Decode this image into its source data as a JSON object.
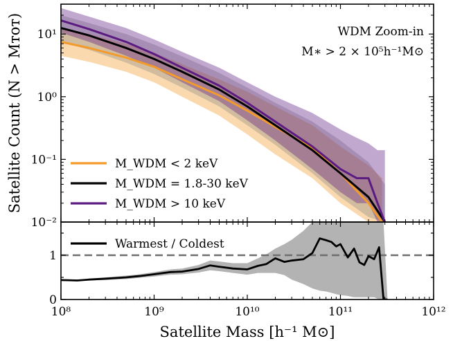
{
  "chart_data": [
    {
      "type": "line",
      "panel": "top",
      "annotation": [
        "WDM Zoom-in",
        "M∗ > 2 × 10⁵h⁻¹M⊙"
      ],
      "xlabel": "Satellite Mass [h⁻¹ M⊙]",
      "ylabel": "Satellite Count (N > Mᴛᴏᴛ)",
      "xscale": "log",
      "yscale": "log",
      "xlim": [
        100000000.0,
        1000000000000.0
      ],
      "ylim": [
        0.01,
        30
      ],
      "xticks": [
        {
          "v": 100000000.0,
          "label": "10⁸"
        },
        {
          "v": 1000000000.0,
          "label": "10⁹"
        },
        {
          "v": 10000000000.0,
          "label": "10¹⁰"
        },
        {
          "v": 100000000000.0,
          "label": "10¹¹"
        },
        {
          "v": 1000000000000.0,
          "label": "10¹²"
        }
      ],
      "yticks": [
        {
          "v": 0.01,
          "label": "10⁻²"
        },
        {
          "v": 0.1,
          "label": "10⁻¹"
        },
        {
          "v": 1,
          "label": "10⁰"
        },
        {
          "v": 10,
          "label": "10¹"
        }
      ],
      "legend_position": "lower-left",
      "series": [
        {
          "name": "M_WDM < 2 keV",
          "color": "#f39b2a",
          "x": [
            100000000.0,
            200000000.0,
            500000000.0,
            1000000000.0,
            2000000000.0,
            5000000000.0,
            10000000000.0,
            20000000000.0,
            50000000000.0,
            100000000000.0,
            200000000000.0,
            280000000000.0
          ],
          "y": [
            7.5,
            6.0,
            4.2,
            3.0,
            1.9,
            1.05,
            0.6,
            0.33,
            0.15,
            0.06,
            0.02,
            0.01
          ],
          "band_low": [
            4.5,
            3.6,
            2.5,
            1.7,
            1.0,
            0.5,
            0.25,
            0.12,
            0.05,
            0.02,
            0.01,
            0.01
          ],
          "band_high": [
            12.5,
            10.0,
            7.0,
            5.0,
            3.3,
            1.9,
            1.2,
            0.7,
            0.35,
            0.16,
            0.08,
            0.05
          ]
        },
        {
          "name": "M_WDM = 1.8-30 keV",
          "color": "#000000",
          "x": [
            100000000.0,
            200000000.0,
            500000000.0,
            1000000000.0,
            2000000000.0,
            5000000000.0,
            10000000000.0,
            20000000000.0,
            50000000000.0,
            100000000000.0,
            200000000000.0,
            300000000000.0
          ],
          "y": [
            12.5,
            9.5,
            6.0,
            4.0,
            2.5,
            1.3,
            0.7,
            0.35,
            0.14,
            0.06,
            0.025,
            0.01
          ],
          "band_low": [
            7.5,
            5.6,
            3.5,
            2.3,
            1.4,
            0.7,
            0.35,
            0.17,
            0.06,
            0.025,
            0.012,
            0.01
          ],
          "band_high": [
            20,
            15,
            10,
            6.8,
            4.4,
            2.4,
            1.4,
            0.8,
            0.4,
            0.2,
            0.09,
            0.04
          ]
        },
        {
          "name": "M_WDM > 10 keV",
          "color": "#5b1a80",
          "x": [
            100000000.0,
            200000000.0,
            500000000.0,
            1000000000.0,
            2000000000.0,
            5000000000.0,
            10000000000.0,
            20000000000.0,
            50000000000.0,
            100000000000.0,
            150000000000.0,
            200000000000.0,
            250000000000.0,
            300000000000.0
          ],
          "y": [
            16.5,
            12.0,
            7.5,
            4.8,
            2.9,
            1.5,
            0.8,
            0.4,
            0.16,
            0.07,
            0.05,
            0.05,
            0.02,
            0.01
          ],
          "band_low": [
            10.5,
            7.5,
            4.5,
            2.9,
            1.7,
            0.85,
            0.42,
            0.2,
            0.07,
            0.03,
            0.02,
            0.02,
            0.01,
            0.01
          ],
          "band_high": [
            26,
            19,
            12.5,
            8.2,
            5.2,
            2.9,
            1.7,
            1.0,
            0.55,
            0.3,
            0.22,
            0.18,
            0.14,
            0.14
          ]
        }
      ]
    },
    {
      "type": "line",
      "panel": "bottom",
      "xscale": "log",
      "xlim": [
        100000000.0,
        1000000000000.0
      ],
      "ylim": [
        0,
        1.75
      ],
      "yticks": [
        {
          "v": 0,
          "label": "0"
        },
        {
          "v": 1,
          "label": "1"
        }
      ],
      "reference_line": 1,
      "legend_position": "top-left",
      "series": [
        {
          "name": "Warmest / Coldest",
          "color": "#000000",
          "band_color": "#b3b3b3",
          "x": [
            100000000.0,
            150000000.0,
            200000000.0,
            300000000.0,
            500000000.0,
            700000000.0,
            1000000000.0,
            1500000000.0,
            2000000000.0,
            3000000000.0,
            4000000000.0,
            5000000000.0,
            7000000000.0,
            10000000000.0,
            13000000000.0,
            16000000000.0,
            20000000000.0,
            25000000000.0,
            30000000000.0,
            40000000000.0,
            50000000000.0,
            60000000000.0,
            70000000000.0,
            80000000000.0,
            90000000000.0,
            100000000000.0,
            120000000000.0,
            140000000000.0,
            160000000000.0,
            180000000000.0,
            200000000000.0,
            230000000000.0,
            260000000000.0,
            290000000000.0,
            320000000000.0
          ],
          "y": [
            0.44,
            0.43,
            0.45,
            0.47,
            0.5,
            0.53,
            0.57,
            0.62,
            0.63,
            0.69,
            0.77,
            0.74,
            0.7,
            0.68,
            0.76,
            0.8,
            0.93,
            0.85,
            0.88,
            0.91,
            1.05,
            1.38,
            1.34,
            1.3,
            1.2,
            1.25,
            0.95,
            1.15,
            0.84,
            0.78,
            0.98,
            0.91,
            1.18,
            0.0,
            0.0
          ],
          "band_low": [
            0.42,
            0.41,
            0.43,
            0.44,
            0.46,
            0.49,
            0.52,
            0.56,
            0.57,
            0.61,
            0.66,
            0.64,
            0.6,
            0.56,
            0.6,
            0.6,
            0.6,
            0.55,
            0.45,
            0.35,
            0.25,
            0.2,
            0.18,
            0.15,
            0.12,
            0.1,
            0.08,
            0.05,
            0.05,
            0.05,
            0.05,
            0.05,
            0.0,
            0.0,
            0.0
          ],
          "band_high": [
            0.46,
            0.45,
            0.47,
            0.5,
            0.54,
            0.57,
            0.62,
            0.68,
            0.7,
            0.78,
            0.88,
            0.86,
            0.82,
            0.82,
            0.93,
            1.02,
            1.15,
            1.25,
            1.35,
            1.55,
            1.75,
            1.75,
            1.75,
            1.75,
            1.75,
            1.75,
            1.75,
            1.75,
            1.75,
            1.75,
            1.75,
            1.75,
            1.75,
            1.75,
            0.0
          ]
        }
      ]
    }
  ]
}
